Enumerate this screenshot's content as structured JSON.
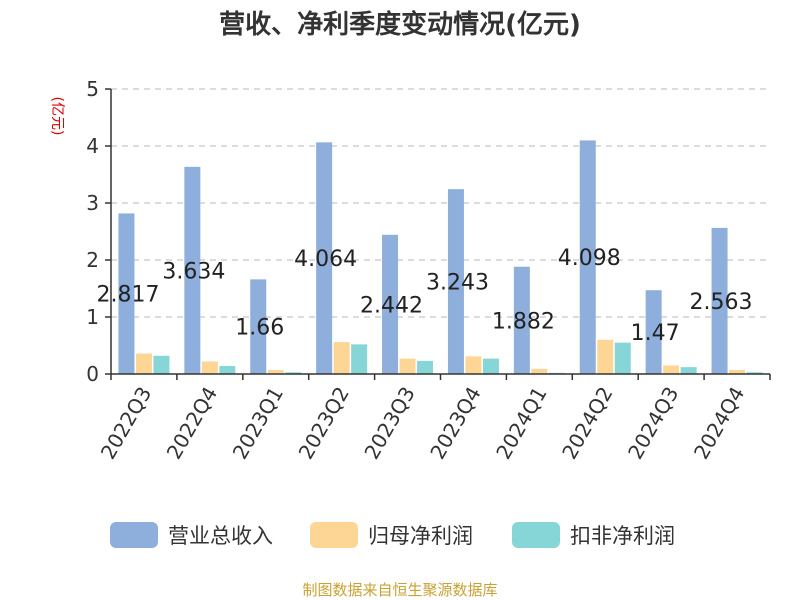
{
  "chart_data": {
    "type": "bar",
    "title": "营收、净利季度变动情况(亿元)",
    "ylabel": "(亿元)",
    "xlabel": "",
    "ylim": [
      0,
      5
    ],
    "yticks": [
      "0",
      "1",
      "2",
      "3",
      "4",
      "5"
    ],
    "categories": [
      "2022Q3",
      "2022Q4",
      "2023Q1",
      "2023Q2",
      "2023Q3",
      "2023Q4",
      "2024Q1",
      "2024Q2",
      "2024Q3",
      "2024Q4"
    ],
    "series": [
      {
        "name": "营业总收入",
        "color": "#8EAEDB",
        "values": [
          2.817,
          3.634,
          1.66,
          4.064,
          2.442,
          3.243,
          1.882,
          4.098,
          1.47,
          2.563
        ],
        "data_labels": [
          "2.817",
          "3.634",
          "1.66",
          "4.064",
          "2.442",
          "3.243",
          "1.882",
          "4.098",
          "1.47",
          "2.563"
        ]
      },
      {
        "name": "归母净利润",
        "color": "#FDD696",
        "values": [
          0.36,
          0.22,
          0.07,
          0.56,
          0.27,
          0.31,
          0.09,
          0.6,
          0.15,
          0.07
        ]
      },
      {
        "name": "扣非净利润",
        "color": "#86D6D8",
        "values": [
          0.32,
          0.14,
          0.03,
          0.52,
          0.23,
          0.27,
          0.02,
          0.55,
          0.12,
          0.03
        ]
      }
    ],
    "grid": true,
    "legend_position": "bottom-center"
  },
  "colors": {
    "title": "#333333",
    "axis": "#333333",
    "grid": "#c8c8c8",
    "ylabel": "#e00000",
    "source": "#c9a233"
  },
  "source_text": "制图数据来自恒生聚源数据库"
}
